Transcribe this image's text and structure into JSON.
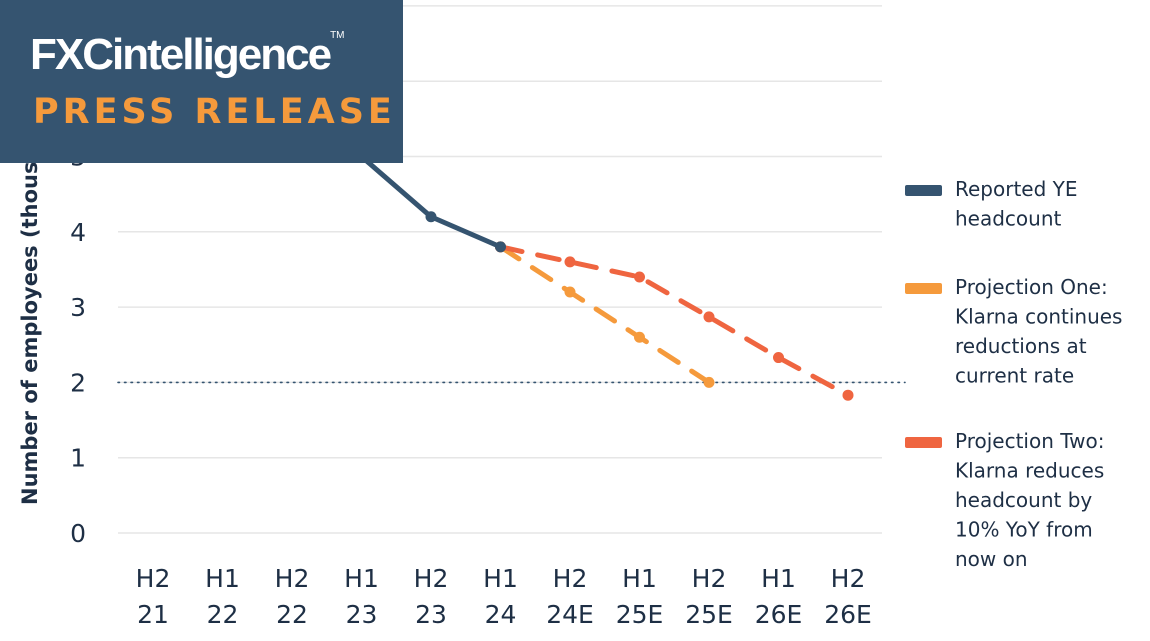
{
  "branding": {
    "logo_text": "FXCintelligence",
    "logo_tm": "TM",
    "subtitle": "PRESS RELEASE"
  },
  "colors": {
    "reported": "#355470",
    "projection_one": "#f59a3c",
    "projection_two": "#ef6540",
    "text": "#1e2f45",
    "grid": "#e6e6e6",
    "reference_line": "#355470",
    "brand_box": "#355470"
  },
  "chart_data": {
    "type": "line",
    "title": "",
    "ylabel": "Number of employees (thous",
    "xlabel": "",
    "ylim": [
      0,
      7
    ],
    "y_ticks_visible": [
      0,
      1,
      2,
      3,
      4,
      5
    ],
    "grid": true,
    "reference_line": {
      "y": 2,
      "style": "dotted"
    },
    "legend_position": "right",
    "categories": [
      [
        "H2",
        "21"
      ],
      [
        "H1",
        "22"
      ],
      [
        "H2",
        "22"
      ],
      [
        "H1",
        "23"
      ],
      [
        "H2",
        "23"
      ],
      [
        "H1",
        "24"
      ],
      [
        "H2",
        "24E"
      ],
      [
        "H1",
        "25E"
      ],
      [
        "H2",
        "25E"
      ],
      [
        "H1",
        "26E"
      ],
      [
        "H2",
        "26E"
      ]
    ],
    "series": [
      {
        "name": "Reported YE headcount",
        "legend_lines": [
          "Reported YE",
          "headcount"
        ],
        "style": "solid",
        "color_key": "reported",
        "values": [
          null,
          null,
          null,
          5.0,
          4.2,
          3.8,
          null,
          null,
          null,
          null,
          null
        ]
      },
      {
        "name": "Projection One: Klarna continues reductions at current rate",
        "legend_lines": [
          "Projection One:",
          "Klarna continues",
          "reductions at",
          "current rate"
        ],
        "style": "dashed",
        "color_key": "projection_one",
        "values": [
          null,
          null,
          null,
          null,
          null,
          3.8,
          3.2,
          2.6,
          2.0,
          null,
          null
        ]
      },
      {
        "name": "Projection Two: Klarna reduces headcount by 10% YoY from now on",
        "legend_lines": [
          "Projection Two:",
          "Klarna reduces",
          "headcount by",
          "10% YoY from",
          "now on"
        ],
        "style": "dashed",
        "color_key": "projection_two",
        "values": [
          null,
          null,
          null,
          null,
          null,
          3.8,
          3.6,
          3.4,
          2.87,
          2.33,
          1.83
        ]
      }
    ]
  }
}
